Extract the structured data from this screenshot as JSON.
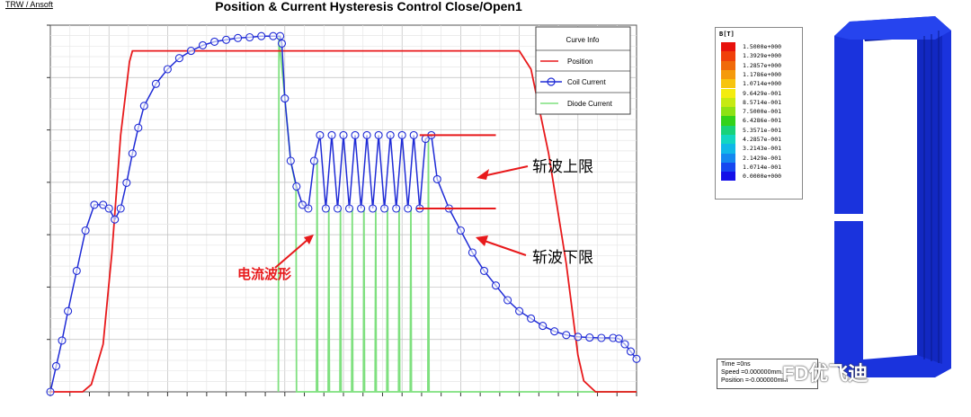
{
  "header": {
    "brand": "TRW / Ansoft",
    "title": "Position & Current Hysteresis Control Close/Open1"
  },
  "annotations": {
    "upper_limit": "斩波上限",
    "lower_limit": "斩波下限",
    "waveform": "电流波形"
  },
  "colors": {
    "position": "#e8191b",
    "coil": "#1f2bd6",
    "diode": "#7fe07f",
    "annotation": "#e8191b",
    "plot_bg": "#ffffff",
    "grid": "#c8c8c8",
    "model": "#1a33dd"
  },
  "chart_data": {
    "type": "line",
    "title": "Position & Current Hysteresis Control Close/Open1",
    "xlabel": "",
    "ylabel": "",
    "xlim": [
      0,
      100
    ],
    "ylim": [
      0,
      100
    ],
    "grid": true,
    "legend": {
      "title": "Curve Info",
      "placement": "top-right",
      "entries": [
        "Position",
        "Coil Current",
        "Diode Current"
      ]
    },
    "series": [
      {
        "name": "Position",
        "color": "#e8191b",
        "x": [
          0,
          5.5,
          7,
          9,
          10.5,
          12,
          13.5,
          14,
          15,
          80,
          82,
          85,
          88,
          90,
          91,
          93,
          100
        ],
        "y": [
          0,
          0,
          2,
          13,
          38,
          70,
          90,
          93,
          93,
          93,
          88,
          65,
          35,
          10,
          3,
          0,
          0
        ]
      },
      {
        "name": "Coil Current",
        "color": "#1f2bd6",
        "marker": "circle",
        "x": [
          0,
          1,
          2,
          3,
          4.5,
          6,
          7.5,
          9,
          10,
          11,
          12,
          13,
          14,
          15,
          16,
          18,
          20,
          22,
          24,
          26,
          28,
          30,
          32,
          34,
          36,
          38,
          39.2,
          39.5,
          40,
          41,
          42,
          43,
          44,
          45,
          46,
          47,
          48,
          49,
          50,
          51,
          52,
          53,
          54,
          55,
          56,
          57,
          58,
          59,
          60,
          61,
          62,
          63,
          64,
          65,
          66,
          68,
          70,
          72,
          74,
          76,
          78,
          80,
          82,
          84,
          86,
          88,
          90,
          92,
          94,
          96,
          97,
          98,
          99,
          100
        ],
        "y": [
          0,
          7,
          14,
          22,
          33,
          44,
          51,
          51,
          50,
          47,
          50,
          57,
          65,
          72,
          78,
          84,
          88,
          91,
          93,
          94.5,
          95.5,
          96,
          96.5,
          96.7,
          97,
          97,
          97,
          95,
          80,
          63,
          56,
          51,
          50,
          63,
          70,
          50,
          70,
          50,
          70,
          50,
          70,
          50,
          70,
          50,
          70,
          50,
          70,
          50,
          70,
          50,
          70,
          50,
          69,
          70,
          58,
          50,
          44,
          38,
          33,
          29,
          25,
          22,
          20,
          18,
          16.5,
          15.5,
          15,
          14.8,
          14.7,
          14.7,
          14.5,
          13,
          11,
          9
        ]
      },
      {
        "name": "Diode Current",
        "color": "#7fe07f",
        "x": [
          38.9,
          39,
          39.1,
          40,
          41,
          41.9,
          42,
          42.1,
          45.4,
          45.5,
          45.6,
          47.4,
          47.5,
          47.6,
          49.4,
          49.5,
          49.6,
          51.4,
          51.5,
          51.6,
          53.4,
          53.5,
          53.6,
          55.4,
          55.5,
          55.6,
          57.4,
          57.5,
          57.6,
          59.4,
          59.5,
          59.6,
          61.4,
          61.5,
          61.6,
          64.4,
          64.5,
          64.6,
          100
        ],
        "y": [
          0,
          97,
          95,
          80,
          63,
          56,
          0,
          0,
          0,
          63,
          0,
          0,
          50,
          0,
          0,
          50,
          0,
          0,
          50,
          0,
          0,
          50,
          0,
          0,
          50,
          0,
          0,
          50,
          0,
          0,
          50,
          0,
          0,
          50,
          0,
          0,
          69,
          0,
          0
        ]
      }
    ],
    "hysteresis_band": {
      "upper": 70,
      "lower": 50
    }
  },
  "field_legend": {
    "title": "B[T]",
    "labels": [
      "1.5000e+000",
      "1.3929e+000",
      "1.2857e+000",
      "1.1786e+000",
      "1.0714e+000",
      "9.6429e-001",
      "8.5714e-001",
      "7.5000e-001",
      "6.4286e-001",
      "5.3571e-001",
      "4.2857e-001",
      "3.2143e-001",
      "2.1429e-001",
      "1.0714e-001",
      "0.0000e+000"
    ],
    "colors": [
      "#e8120c",
      "#f0400a",
      "#f06a0a",
      "#f59a0c",
      "#f7c40e",
      "#f4ec0f",
      "#c6ea12",
      "#8ee214",
      "#33d21a",
      "#18d27a",
      "#12d6c2",
      "#10b8e8",
      "#1488f0",
      "#1648f0",
      "#1410e8"
    ]
  },
  "sim_info": {
    "time": "Time =0ns",
    "speed": "Speed =0.000000mm...",
    "position": "Position =-0.000000mm"
  },
  "watermark": "FD优飞迪"
}
